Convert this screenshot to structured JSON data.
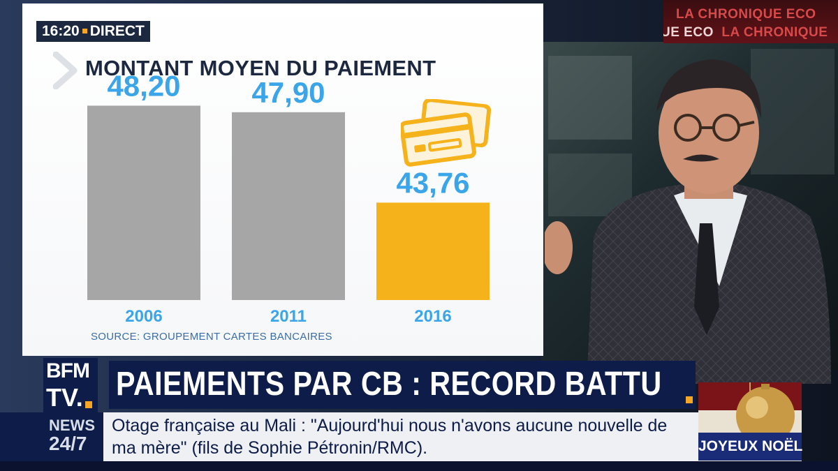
{
  "broadcast": {
    "clock": "16:20",
    "live_label": "DIRECT",
    "banner_line1": "LA CHRONIQUE ECO",
    "banner_line2_a": "UE ECO",
    "banner_line2_b": "LA CHRONIQUE",
    "channel_line1": "BFM",
    "channel_line2": "TV.",
    "headline": "PAIEMENTS PAR CB : RECORD BATTU",
    "news_label_1": "NEWS",
    "news_label_2": "24/7",
    "ticker": "Otage française au Mali : \"Aujourd'hui nous n'avons aucune nouvelle de ma mère\" (fils de Sophie Pétronin/RMC).",
    "greeting": "JOYEUX NOËL"
  },
  "colors": {
    "bar_past": "#a6a6a6",
    "bar_current": "#f5b21b",
    "value_text": "#3aa5e8",
    "navy": "#0d1c48",
    "accent": "#f5a623"
  },
  "icons": [
    "chevron-right-icon",
    "credit-cards-icon"
  ],
  "chart_data": {
    "type": "bar",
    "title": "MONTANT MOYEN DU PAIEMENT",
    "categories": [
      "2006",
      "2011",
      "2016"
    ],
    "values": [
      48.2,
      47.9,
      43.76
    ],
    "value_labels": [
      "48,20",
      "47,90",
      "43,76"
    ],
    "highlight_index": 2,
    "xlabel": "",
    "ylabel": "",
    "source": "SOURCE: GROUPEMENT CARTES BANCAIRES"
  }
}
